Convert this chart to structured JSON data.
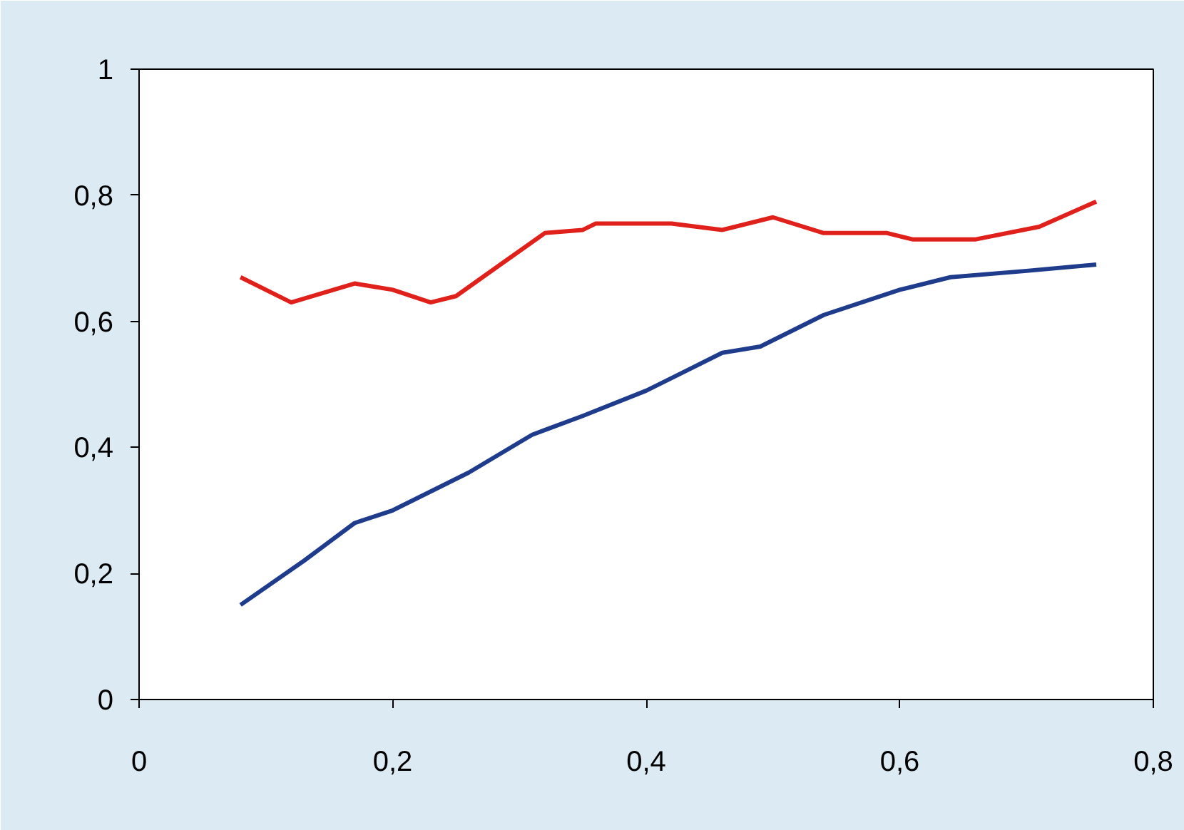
{
  "chart_data": {
    "type": "line",
    "xlim": [
      0,
      0.8
    ],
    "ylim": [
      0,
      1
    ],
    "xticks": [
      0,
      {
        "value": 0.2,
        "label": "0,2"
      },
      {
        "value": 0.4,
        "label": "0,4"
      },
      {
        "value": 0.6,
        "label": "0,6"
      },
      {
        "value": 0.8,
        "label": "0,8"
      }
    ],
    "yticks": [
      0,
      {
        "value": 0.2,
        "label": "0,2"
      },
      {
        "value": 0.4,
        "label": "0,4"
      },
      {
        "value": 0.6,
        "label": "0,6"
      },
      {
        "value": 0.8,
        "label": "0,8"
      },
      1
    ],
    "grid": false,
    "marker": "none",
    "line_style": "solid",
    "series": [
      {
        "color": "#e0201a",
        "x": [
          0.08,
          0.12,
          0.17,
          0.2,
          0.23,
          0.25,
          0.285,
          0.32,
          0.35,
          0.36,
          0.42,
          0.46,
          0.5,
          0.54,
          0.59,
          0.61,
          0.66,
          0.71,
          0.755
        ],
        "values": [
          0.67,
          0.63,
          0.66,
          0.65,
          0.63,
          0.64,
          0.69,
          0.74,
          0.745,
          0.755,
          0.755,
          0.745,
          0.765,
          0.74,
          0.74,
          0.73,
          0.73,
          0.75,
          0.79
        ]
      },
      {
        "color": "#1f3c8c",
        "x": [
          0.08,
          0.13,
          0.17,
          0.2,
          0.23,
          0.26,
          0.31,
          0.35,
          0.4,
          0.43,
          0.46,
          0.49,
          0.54,
          0.6,
          0.64,
          0.7,
          0.755
        ],
        "values": [
          0.15,
          0.22,
          0.28,
          0.3,
          0.33,
          0.36,
          0.42,
          0.45,
          0.49,
          0.52,
          0.55,
          0.56,
          0.61,
          0.65,
          0.67,
          0.68,
          0.69
        ]
      }
    ]
  }
}
